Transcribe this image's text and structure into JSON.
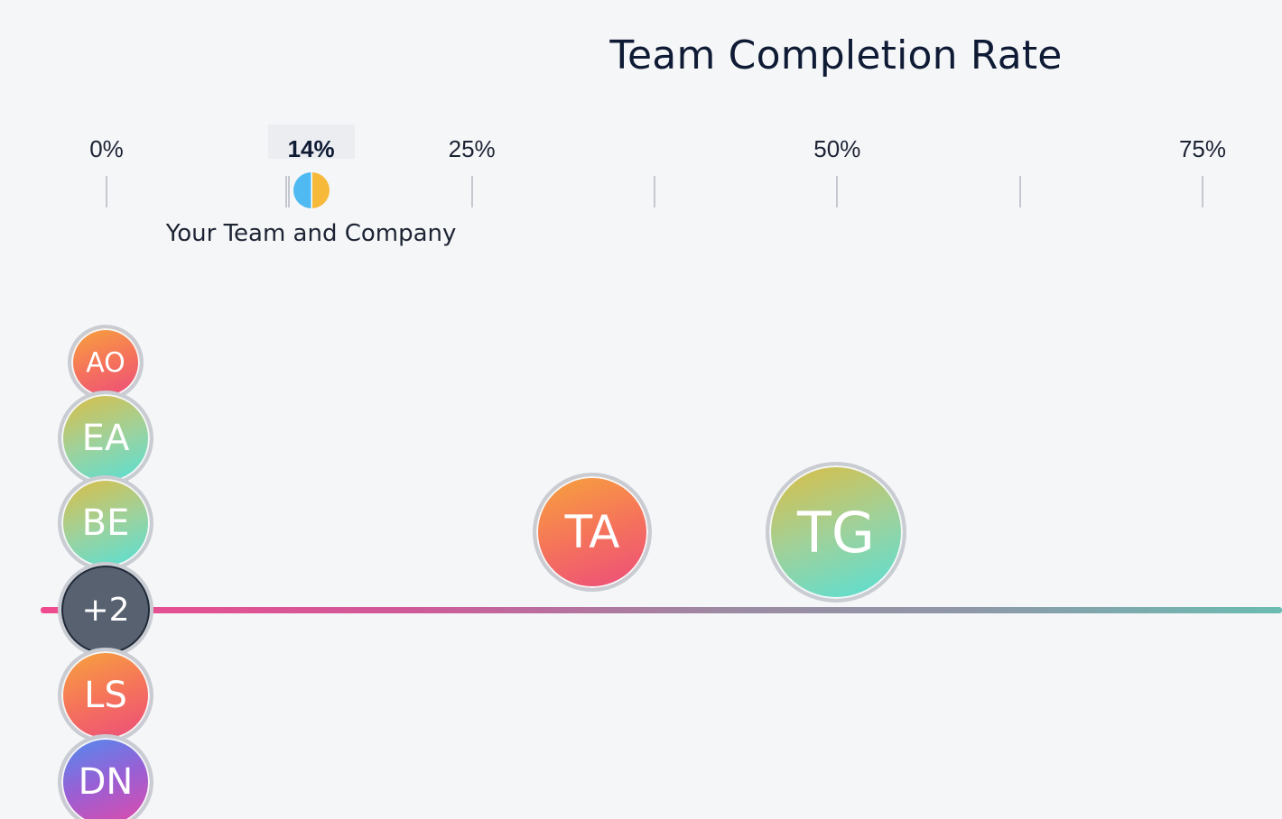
{
  "chart_data": {
    "type": "scatter",
    "title": "Team Completion Rate",
    "x_unit": "%",
    "xlim": [
      0,
      75
    ],
    "tick_labels": [
      "0%",
      "25%",
      "50%",
      "75%"
    ],
    "minor_ticks": [
      0,
      12.5,
      25,
      37.5,
      50,
      62.5,
      75
    ],
    "marker": {
      "label": "14%",
      "value": 14,
      "caption": "Your Team and Company",
      "colors": [
        "#4fb9f2",
        "#f6b93a"
      ]
    },
    "members": [
      {
        "initials": "AO",
        "value": 0,
        "gradient": "orange"
      },
      {
        "initials": "EA",
        "value": 0,
        "gradient": "green"
      },
      {
        "initials": "BE",
        "value": 0,
        "gradient": "green"
      },
      {
        "initials": "+2",
        "value": 0,
        "gradient": "gray"
      },
      {
        "initials": "LS",
        "value": 0,
        "gradient": "orange"
      },
      {
        "initials": "DN",
        "value": 0,
        "gradient": "purple"
      },
      {
        "initials": "TA",
        "value": 33.3,
        "gradient": "orange"
      },
      {
        "initials": "TG",
        "value": 50,
        "gradient": "green"
      }
    ]
  },
  "colors": {
    "baseline_start": "#ef4c8f",
    "baseline_end": "#6bbcb3",
    "marker_left": "#4fb9f2",
    "marker_right": "#f6b93a"
  }
}
